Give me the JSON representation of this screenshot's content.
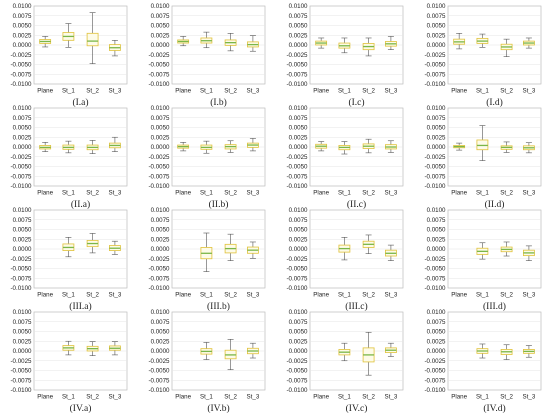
{
  "chart_data": [
    {
      "type": "box",
      "caption": "(I.a)",
      "ylim": [
        -0.01,
        0.01
      ],
      "yticks": [
        "0.0100",
        "0.0075",
        "0.0050",
        "0.0025",
        "0.0000",
        "-0.0025",
        "-0.0050",
        "-0.0075",
        "-0.0100"
      ],
      "categories": [
        "Plane",
        "St_1",
        "St_2",
        "St_3"
      ],
      "boxes": [
        {
          "min": -0.0005,
          "q1": 0.0004,
          "median": 0.0009,
          "q3": 0.0014,
          "max": 0.0022
        },
        {
          "min": -0.0006,
          "q1": 0.0012,
          "median": 0.0022,
          "q3": 0.0032,
          "max": 0.0055
        },
        {
          "min": -0.0048,
          "q1": -0.0002,
          "median": 0.001,
          "q3": 0.003,
          "max": 0.0083
        },
        {
          "min": -0.0028,
          "q1": -0.0014,
          "median": -0.0007,
          "q3": 0.0001,
          "max": 0.0012
        }
      ]
    },
    {
      "type": "box",
      "caption": "(I.b)",
      "ylim": [
        -0.01,
        0.01
      ],
      "yticks": [
        "0.0100",
        "0.0075",
        "0.0050",
        "0.0025",
        "0.0000",
        "-0.0025",
        "-0.0050",
        "-0.0075",
        "-0.0100"
      ],
      "categories": [
        "Plane",
        "St_1",
        "St_2",
        "St_3"
      ],
      "boxes": [
        {
          "min": -0.0002,
          "q1": 0.0005,
          "median": 0.0009,
          "q3": 0.0013,
          "max": 0.0022
        },
        {
          "min": -0.0007,
          "q1": 0.0005,
          "median": 0.0011,
          "q3": 0.0018,
          "max": 0.0033
        },
        {
          "min": -0.0015,
          "q1": -0.0001,
          "median": 0.0006,
          "q3": 0.0013,
          "max": 0.003
        },
        {
          "min": -0.0016,
          "q1": -0.0005,
          "median": 0.0001,
          "q3": 0.0008,
          "max": 0.0024
        }
      ]
    },
    {
      "type": "box",
      "caption": "(I.c)",
      "ylim": [
        -0.01,
        0.01
      ],
      "yticks": [
        "0.0100",
        "0.0075",
        "0.0050",
        "0.0025",
        "0.0000",
        "-0.0025",
        "-0.0050",
        "-0.0075",
        "-0.0100"
      ],
      "categories": [
        "Plane",
        "St_1",
        "St_2",
        "St_3"
      ],
      "boxes": [
        {
          "min": -0.0008,
          "q1": 0.0,
          "median": 0.0005,
          "q3": 0.001,
          "max": 0.0018
        },
        {
          "min": -0.002,
          "q1": -0.0008,
          "median": -0.0002,
          "q3": 0.0005,
          "max": 0.0018
        },
        {
          "min": -0.0028,
          "q1": -0.0012,
          "median": -0.0004,
          "q3": 0.0004,
          "max": 0.0018
        },
        {
          "min": -0.0012,
          "q1": -0.0003,
          "median": 0.0003,
          "q3": 0.0009,
          "max": 0.0022
        }
      ]
    },
    {
      "type": "box",
      "caption": "(I.d)",
      "ylim": [
        -0.01,
        0.01
      ],
      "yticks": [
        "0.0100",
        "0.0075",
        "0.0050",
        "0.0025",
        "0.0000",
        "-0.0025",
        "-0.0050",
        "-0.0075",
        "-0.0100"
      ],
      "categories": [
        "Plane",
        "St_1",
        "St_2",
        "St_3"
      ],
      "boxes": [
        {
          "min": -0.001,
          "q1": 0.0002,
          "median": 0.0008,
          "q3": 0.0015,
          "max": 0.003
        },
        {
          "min": -0.0006,
          "q1": 0.0004,
          "median": 0.001,
          "q3": 0.0017,
          "max": 0.0028
        },
        {
          "min": -0.003,
          "q1": -0.0012,
          "median": -0.0005,
          "q3": 0.0002,
          "max": 0.0015
        },
        {
          "min": -0.0008,
          "q1": 0.0,
          "median": 0.0005,
          "q3": 0.001,
          "max": 0.0018
        }
      ]
    },
    {
      "type": "box",
      "caption": "(II.a)",
      "ylim": [
        -0.01,
        0.01
      ],
      "yticks": [
        "0.0100",
        "0.0075",
        "0.0050",
        "0.0025",
        "0.0000",
        "-0.0025",
        "-0.0050",
        "-0.0075",
        "-0.0100"
      ],
      "categories": [
        "Plane",
        "St_1",
        "St_2",
        "St_3"
      ],
      "boxes": [
        {
          "min": -0.0012,
          "q1": -0.0005,
          "median": -0.0001,
          "q3": 0.0004,
          "max": 0.0012
        },
        {
          "min": -0.0015,
          "q1": -0.0006,
          "median": -0.0001,
          "q3": 0.0005,
          "max": 0.0015
        },
        {
          "min": -0.0017,
          "q1": -0.0007,
          "median": -0.0001,
          "q3": 0.0005,
          "max": 0.0017
        },
        {
          "min": -0.0012,
          "q1": -0.0002,
          "median": 0.0004,
          "q3": 0.001,
          "max": 0.0025
        }
      ]
    },
    {
      "type": "box",
      "caption": "(II.b)",
      "ylim": [
        -0.01,
        0.01
      ],
      "yticks": [
        "0.0100",
        "0.0075",
        "0.0050",
        "0.0025",
        "0.0000",
        "-0.0025",
        "-0.0050",
        "-0.0075",
        "-0.0100"
      ],
      "categories": [
        "Plane",
        "St_1",
        "St_2",
        "St_3"
      ],
      "boxes": [
        {
          "min": -0.001,
          "q1": -0.0003,
          "median": 0.0001,
          "q3": 0.0005,
          "max": 0.0012
        },
        {
          "min": -0.0016,
          "q1": -0.0006,
          "median": -0.0001,
          "q3": 0.0005,
          "max": 0.0015
        },
        {
          "min": -0.0014,
          "q1": -0.0005,
          "median": 0.0001,
          "q3": 0.0006,
          "max": 0.0016
        },
        {
          "min": -0.001,
          "q1": -0.0001,
          "median": 0.0005,
          "q3": 0.001,
          "max": 0.0022
        }
      ]
    },
    {
      "type": "box",
      "caption": "(II.c)",
      "ylim": [
        -0.01,
        0.01
      ],
      "yticks": [
        "0.0100",
        "0.0075",
        "0.0050",
        "0.0025",
        "0.0000",
        "-0.0025",
        "-0.0050",
        "-0.0075",
        "-0.0100"
      ],
      "categories": [
        "Plane",
        "St_1",
        "St_2",
        "St_3"
      ],
      "boxes": [
        {
          "min": -0.001,
          "q1": -0.0003,
          "median": 0.0002,
          "q3": 0.0007,
          "max": 0.0014
        },
        {
          "min": -0.0018,
          "q1": -0.0007,
          "median": -0.0001,
          "q3": 0.0004,
          "max": 0.0014
        },
        {
          "min": -0.0015,
          "q1": -0.0004,
          "median": 0.0002,
          "q3": 0.0008,
          "max": 0.002
        },
        {
          "min": -0.0014,
          "q1": -0.0005,
          "median": 0.0,
          "q3": 0.0006,
          "max": 0.0016
        }
      ]
    },
    {
      "type": "box",
      "caption": "(II.d)",
      "ylim": [
        -0.01,
        0.01
      ],
      "yticks": [
        "0.0100",
        "0.0075",
        "0.0050",
        "0.0025",
        "0.0000",
        "-0.0025",
        "-0.0050",
        "-0.0075",
        "-0.0100"
      ],
      "categories": [
        "Plane",
        "St_1",
        "St_2",
        "St_3"
      ],
      "boxes": [
        {
          "min": -0.0008,
          "q1": -0.0002,
          "median": 0.0001,
          "q3": 0.0004,
          "max": 0.001
        },
        {
          "min": -0.0035,
          "q1": -0.0007,
          "median": 0.0004,
          "q3": 0.0018,
          "max": 0.0055
        },
        {
          "min": -0.0014,
          "q1": -0.0006,
          "median": -0.0001,
          "q3": 0.0003,
          "max": 0.0013
        },
        {
          "min": -0.0015,
          "q1": -0.0007,
          "median": -0.0002,
          "q3": 0.0003,
          "max": 0.0011
        }
      ]
    },
    {
      "type": "box",
      "caption": "(III.a)",
      "ylim": [
        -0.01,
        0.01
      ],
      "yticks": [
        "0.0100",
        "0.0075",
        "0.0050",
        "0.0025",
        "0.0000",
        "-0.0025",
        "-0.0050",
        "-0.0075",
        "-0.0100"
      ],
      "categories": [
        "Plane",
        "St_1",
        "St_2",
        "St_3"
      ],
      "boxes": [
        null,
        {
          "min": -0.002,
          "q1": -0.0004,
          "median": 0.0004,
          "q3": 0.0013,
          "max": 0.003
        },
        {
          "min": -0.001,
          "q1": 0.0006,
          "median": 0.0014,
          "q3": 0.0022,
          "max": 0.004
        },
        {
          "min": -0.0014,
          "q1": -0.0004,
          "median": 0.0002,
          "q3": 0.0009,
          "max": 0.002
        }
      ]
    },
    {
      "type": "box",
      "caption": "(III.b)",
      "ylim": [
        -0.01,
        0.01
      ],
      "yticks": [
        "0.0100",
        "0.0075",
        "0.0050",
        "0.0025",
        "0.0000",
        "-0.0025",
        "-0.0050",
        "-0.0075",
        "-0.0100"
      ],
      "categories": [
        "Plane",
        "St_1",
        "St_2",
        "St_3"
      ],
      "boxes": [
        null,
        {
          "min": -0.0058,
          "q1": -0.0025,
          "median": -0.0011,
          "q3": 0.0004,
          "max": 0.0041
        },
        {
          "min": -0.003,
          "q1": -0.001,
          "median": 0.0001,
          "q3": 0.0012,
          "max": 0.0038
        },
        {
          "min": -0.0024,
          "q1": -0.0011,
          "median": -0.0003,
          "q3": 0.0005,
          "max": 0.0018
        }
      ]
    },
    {
      "type": "box",
      "caption": "(III.c)",
      "ylim": [
        -0.01,
        0.01
      ],
      "yticks": [
        "0.0100",
        "0.0075",
        "0.0050",
        "0.0025",
        "0.0000",
        "-0.0025",
        "-0.0050",
        "-0.0075",
        "-0.0100"
      ],
      "categories": [
        "Plane",
        "St_1",
        "St_2",
        "St_3"
      ],
      "boxes": [
        null,
        {
          "min": -0.0028,
          "q1": -0.0008,
          "median": 0.0001,
          "q3": 0.001,
          "max": 0.003
        },
        {
          "min": -0.0012,
          "q1": 0.0004,
          "median": 0.0012,
          "q3": 0.002,
          "max": 0.0036
        },
        {
          "min": -0.003,
          "q1": -0.0018,
          "median": -0.0011,
          "q3": -0.0003,
          "max": 0.001
        }
      ]
    },
    {
      "type": "box",
      "caption": "(III.d)",
      "ylim": [
        -0.01,
        0.01
      ],
      "yticks": [
        "0.0100",
        "0.0075",
        "0.0050",
        "0.0025",
        "0.0000",
        "-0.0025",
        "-0.0050",
        "-0.0075",
        "-0.0100"
      ],
      "categories": [
        "Plane",
        "St_1",
        "St_2",
        "St_3"
      ],
      "boxes": [
        null,
        {
          "min": -0.0026,
          "q1": -0.0014,
          "median": -0.0006,
          "q3": 0.0002,
          "max": 0.0016
        },
        {
          "min": -0.0018,
          "q1": -0.0007,
          "median": -0.0001,
          "q3": 0.0005,
          "max": 0.0018
        },
        {
          "min": -0.003,
          "q1": -0.0017,
          "median": -0.001,
          "q3": -0.0003,
          "max": 0.0008
        }
      ]
    },
    {
      "type": "box",
      "caption": "(IV.a)",
      "ylim": [
        -0.01,
        0.01
      ],
      "yticks": [
        "0.0100",
        "0.0075",
        "0.0050",
        "0.0025",
        "0.0000",
        "-0.0025",
        "-0.0050",
        "-0.0075",
        "-0.0100"
      ],
      "categories": [
        "Plane",
        "St_1",
        "St_2",
        "St_3"
      ],
      "boxes": [
        null,
        {
          "min": -0.001,
          "q1": 0.0002,
          "median": 0.0008,
          "q3": 0.0014,
          "max": 0.0025
        },
        {
          "min": -0.0012,
          "q1": 0.0,
          "median": 0.0006,
          "q3": 0.0012,
          "max": 0.0024
        },
        {
          "min": -0.001,
          "q1": 0.0002,
          "median": 0.0007,
          "q3": 0.0013,
          "max": 0.0024
        }
      ]
    },
    {
      "type": "box",
      "caption": "(IV.b)",
      "ylim": [
        -0.01,
        0.01
      ],
      "yticks": [
        "0.0100",
        "0.0075",
        "0.0050",
        "0.0025",
        "0.0000",
        "-0.0025",
        "-0.0050",
        "-0.0075",
        "-0.0100"
      ],
      "categories": [
        "Plane",
        "St_1",
        "St_2",
        "St_3"
      ],
      "boxes": [
        null,
        {
          "min": -0.0022,
          "q1": -0.0008,
          "median": -0.0001,
          "q3": 0.0006,
          "max": 0.0022
        },
        {
          "min": -0.0048,
          "q1": -0.002,
          "median": -0.001,
          "q3": 0.0002,
          "max": 0.003
        },
        {
          "min": -0.0018,
          "q1": -0.0007,
          "median": 0.0,
          "q3": 0.0007,
          "max": 0.002
        }
      ]
    },
    {
      "type": "box",
      "caption": "(IV.c)",
      "ylim": [
        -0.01,
        0.01
      ],
      "yticks": [
        "0.0100",
        "0.0075",
        "0.0050",
        "0.0025",
        "0.0000",
        "-0.0025",
        "-0.0050",
        "-0.0075",
        "-0.0100"
      ],
      "categories": [
        "Plane",
        "St_1",
        "St_2",
        "St_3"
      ],
      "boxes": [
        null,
        {
          "min": -0.0025,
          "q1": -0.001,
          "median": -0.0003,
          "q3": 0.0004,
          "max": 0.002
        },
        {
          "min": -0.0062,
          "q1": -0.0028,
          "median": -0.001,
          "q3": 0.0008,
          "max": 0.0048
        },
        {
          "min": -0.0014,
          "q1": -0.0004,
          "median": 0.0002,
          "q3": 0.0008,
          "max": 0.002
        }
      ]
    },
    {
      "type": "box",
      "caption": "(IV.d)",
      "ylim": [
        -0.01,
        0.01
      ],
      "yticks": [
        "0.0100",
        "0.0075",
        "0.0050",
        "0.0025",
        "0.0000",
        "-0.0025",
        "-0.0050",
        "-0.0075",
        "-0.0100"
      ],
      "categories": [
        "Plane",
        "St_1",
        "St_2",
        "St_3"
      ],
      "boxes": [
        null,
        {
          "min": -0.0018,
          "q1": -0.0006,
          "median": 0.0,
          "q3": 0.0006,
          "max": 0.0018
        },
        {
          "min": -0.0022,
          "q1": -0.0009,
          "median": -0.0002,
          "q3": 0.0004,
          "max": 0.0016
        },
        {
          "min": -0.0016,
          "q1": -0.0006,
          "median": -0.0001,
          "q3": 0.0004,
          "max": 0.0014
        }
      ]
    }
  ],
  "colors": {
    "box_fill": "#fdfbe8",
    "box_stroke": "#e0c23a",
    "median": "#7ab648",
    "whisker": "#555555",
    "grid": "#e6e6e6",
    "frame": "#bbbbbb"
  }
}
